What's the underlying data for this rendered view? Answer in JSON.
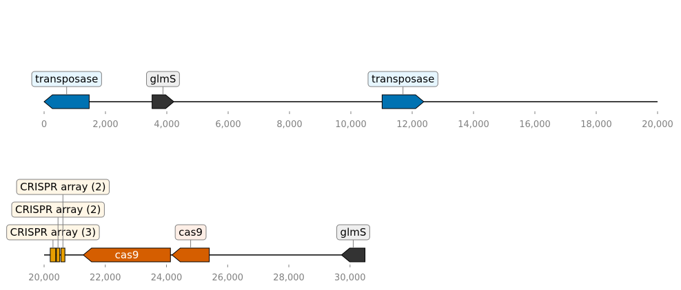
{
  "colors": {
    "transposase": "#0072b2",
    "transposase_box": "#e6f6ff",
    "glms": "#333333",
    "glms_box": "#eeeeee",
    "crispr": "#e69f00",
    "crispr_box": "#fff6e6",
    "cas9": "#d55e00",
    "cas9_box": "#fdeee6",
    "axis_text": "#808080",
    "track": "#000000"
  },
  "tracks": [
    {
      "id": "track-1",
      "range": [
        0,
        20000
      ],
      "ticks": [
        {
          "value": 0,
          "label": "0"
        },
        {
          "value": 2000,
          "label": "2,000"
        },
        {
          "value": 4000,
          "label": "4,000"
        },
        {
          "value": 6000,
          "label": "6,000"
        },
        {
          "value": 8000,
          "label": "8,000"
        },
        {
          "value": 10000,
          "label": "10,000"
        },
        {
          "value": 12000,
          "label": "12,000"
        },
        {
          "value": 14000,
          "label": "14,000"
        },
        {
          "value": 16000,
          "label": "16,000"
        },
        {
          "value": 18000,
          "label": "18,000"
        },
        {
          "value": 20000,
          "label": "20,000"
        }
      ],
      "features": [
        {
          "name": "transposase",
          "start": 0,
          "end": 1470,
          "strand": -1,
          "color_key": "transposase",
          "label": "transposase",
          "label_inside": false,
          "label_level": 0
        },
        {
          "name": "glmS",
          "start": 3520,
          "end": 4230,
          "strand": 1,
          "color_key": "glms",
          "label": "glmS",
          "label_inside": false,
          "label_level": 0
        },
        {
          "name": "transposase",
          "start": 11020,
          "end": 12380,
          "strand": 1,
          "color_key": "transposase",
          "label": "transposase",
          "label_inside": false,
          "label_level": 0
        }
      ]
    },
    {
      "id": "track-2",
      "range": [
        20000,
        30500
      ],
      "ticks": [
        {
          "value": 20000,
          "label": "20,000"
        },
        {
          "value": 22000,
          "label": "22,000"
        },
        {
          "value": 24000,
          "label": "24,000"
        },
        {
          "value": 26000,
          "label": "26,000"
        },
        {
          "value": 28000,
          "label": "28,000"
        },
        {
          "value": 30000,
          "label": "30,000"
        }
      ],
      "features": [
        {
          "name": "CRISPR array",
          "start": 20200,
          "end": 20380,
          "strand": 0,
          "color_key": "crispr",
          "label": "CRISPR array (3)",
          "label_inside": false,
          "label_level": 0
        },
        {
          "name": "CRISPR array",
          "start": 20400,
          "end": 20510,
          "strand": 0,
          "color_key": "crispr",
          "label": "CRISPR array (2)",
          "label_inside": false,
          "label_level": 1
        },
        {
          "name": "CRISPR array",
          "start": 20550,
          "end": 20680,
          "strand": 0,
          "color_key": "crispr",
          "label": "CRISPR array (2)",
          "label_inside": false,
          "label_level": 2
        },
        {
          "name": "cas9",
          "start": 21280,
          "end": 24130,
          "strand": -1,
          "color_key": "cas9",
          "label": "cas9",
          "label_inside": true,
          "label_level": 0
        },
        {
          "name": "cas9",
          "start": 24180,
          "end": 25400,
          "strand": -1,
          "color_key": "cas9",
          "label": "cas9",
          "label_inside": false,
          "label_level": 0
        },
        {
          "name": "glmS",
          "start": 29720,
          "end": 30490,
          "strand": -1,
          "color_key": "glms",
          "label": "glmS",
          "label_inside": false,
          "label_level": 0
        }
      ]
    }
  ]
}
